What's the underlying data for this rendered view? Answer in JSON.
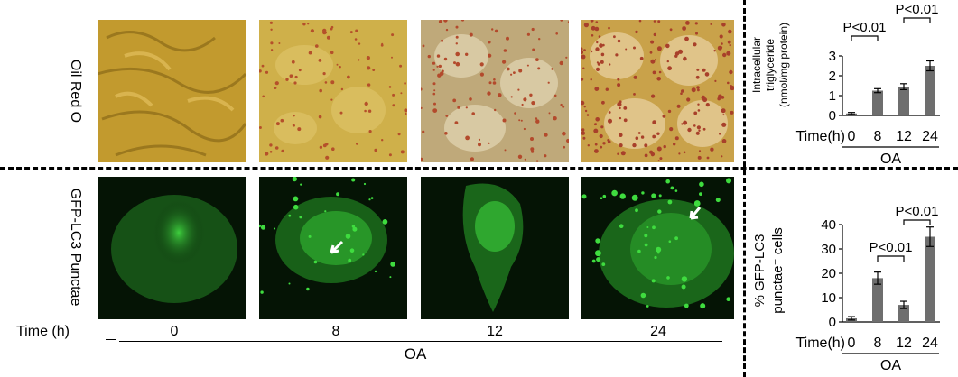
{
  "row_labels": {
    "top": "Oil Red O",
    "bottom": "GFP-LC3 Punctae"
  },
  "time_axis": {
    "label": "Time (h)",
    "ticks": [
      "0",
      "8",
      "12",
      "24"
    ],
    "group_label": "OA"
  },
  "colors": {
    "bar": "#6e6e6e",
    "oil_red_bg": "#c9a33a",
    "gfp_bg": "#0a2a0a",
    "gfp_green": "#3fdc3f"
  },
  "chart_data": [
    {
      "type": "bar",
      "ylabel_lines": [
        "Intracellular",
        "triglyceride",
        "(nmol/mg protein)"
      ],
      "xlabel_prefix": "Time(h)",
      "categories": [
        "0",
        "8",
        "12",
        "24"
      ],
      "group_label": "OA",
      "values": [
        0.1,
        1.25,
        1.45,
        2.5
      ],
      "errors": [
        0.05,
        0.1,
        0.15,
        0.25
      ],
      "ylim": [
        0,
        3
      ],
      "yticks": [
        "0",
        "1",
        "2",
        "3"
      ],
      "significance": [
        {
          "from": 0,
          "to": 1,
          "label": "P<0.01"
        },
        {
          "from": 2,
          "to": 3,
          "label": "P<0.01"
        }
      ]
    },
    {
      "type": "bar",
      "ylabel_lines": [
        "% GFP-LC3",
        "punctae⁺ cells"
      ],
      "xlabel_prefix": "Time(h)",
      "categories": [
        "0",
        "8",
        "12",
        "24"
      ],
      "group_label": "OA",
      "values": [
        1.5,
        18,
        7,
        35
      ],
      "errors": [
        0.7,
        2.5,
        1.5,
        4
      ],
      "ylim": [
        0,
        40
      ],
      "yticks": [
        "0",
        "10",
        "20",
        "30",
        "40"
      ],
      "significance": [
        {
          "from": 1,
          "to": 2,
          "label": "P<0.01"
        },
        {
          "from": 2,
          "to": 3,
          "label": "P<0.01"
        }
      ]
    }
  ]
}
